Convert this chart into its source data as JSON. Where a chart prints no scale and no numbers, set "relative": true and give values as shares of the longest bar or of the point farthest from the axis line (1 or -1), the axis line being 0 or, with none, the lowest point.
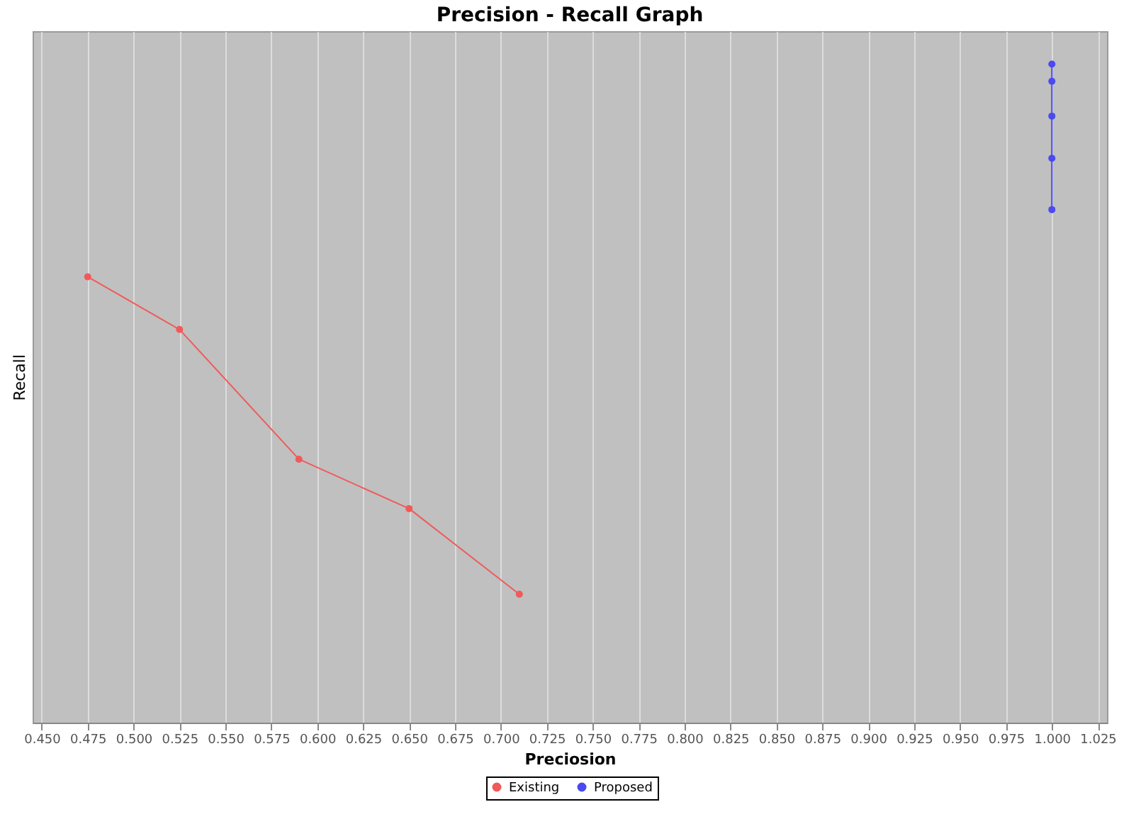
{
  "chart_data": {
    "type": "line",
    "title": "Precision - Recall Graph",
    "xlabel": "Preciosion",
    "ylabel": "Recall",
    "relative": true,
    "xlim": [
      0.445,
      1.03
    ],
    "xticks": [
      {
        "value": 0.45,
        "label": "0.450"
      },
      {
        "value": 0.475,
        "label": "0.475"
      },
      {
        "value": 0.5,
        "label": "0.500"
      },
      {
        "value": 0.525,
        "label": "0.525"
      },
      {
        "value": 0.55,
        "label": "0.550"
      },
      {
        "value": 0.575,
        "label": "0.575"
      },
      {
        "value": 0.6,
        "label": "0.600"
      },
      {
        "value": 0.625,
        "label": "0.625"
      },
      {
        "value": 0.65,
        "label": "0.650"
      },
      {
        "value": 0.675,
        "label": "0.675"
      },
      {
        "value": 0.7,
        "label": "0.700"
      },
      {
        "value": 0.725,
        "label": "0.725"
      },
      {
        "value": 0.75,
        "label": "0.750"
      },
      {
        "value": 0.775,
        "label": "0.775"
      },
      {
        "value": 0.8,
        "label": "0.800"
      },
      {
        "value": 0.825,
        "label": "0.825"
      },
      {
        "value": 0.85,
        "label": "0.850"
      },
      {
        "value": 0.875,
        "label": "0.875"
      },
      {
        "value": 0.9,
        "label": "0.900"
      },
      {
        "value": 0.925,
        "label": "0.925"
      },
      {
        "value": 0.95,
        "label": "0.950"
      },
      {
        "value": 0.975,
        "label": "0.975"
      },
      {
        "value": 1.0,
        "label": "1.000"
      },
      {
        "value": 1.025,
        "label": "1.025"
      }
    ],
    "grid": "x",
    "legend": "bottom",
    "marker": "circle",
    "line_style": "solid",
    "series": [
      {
        "name": "Existing",
        "color": "#f05a5a",
        "x": [
          0.475,
          0.525,
          0.59,
          0.65,
          0.71
        ],
        "values": [
          0.677,
          0.597,
          0.4,
          0.325,
          0.195
        ]
      },
      {
        "name": "Proposed",
        "color": "#4a4af0",
        "x": [
          1.0,
          1.0,
          1.0,
          1.0,
          1.0
        ],
        "values": [
          1,
          0.974,
          0.921,
          0.857,
          0.779
        ]
      }
    ]
  }
}
